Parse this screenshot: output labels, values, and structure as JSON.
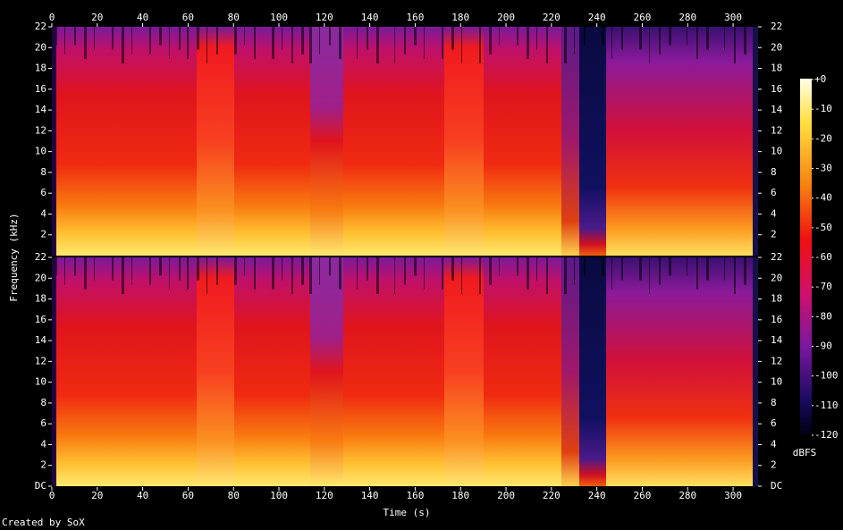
{
  "chart_data": {
    "type": "spectrogram",
    "xlabel": "Time (s)",
    "ylabel": "Frequency (kHz)",
    "xlim": [
      0,
      311
    ],
    "xticks": [
      0,
      20,
      40,
      60,
      80,
      100,
      120,
      140,
      160,
      180,
      200,
      220,
      240,
      260,
      280,
      300
    ],
    "channels": [
      {
        "ylim": [
          0,
          22
        ],
        "yticks": [
          2,
          4,
          6,
          8,
          10,
          12,
          14,
          16,
          18,
          20,
          22
        ]
      },
      {
        "ylim": [
          0,
          22
        ],
        "yticks": [
          {
            "value": 0,
            "label": "DC"
          },
          2,
          4,
          6,
          8,
          10,
          12,
          14,
          16,
          18,
          20,
          22
        ]
      }
    ],
    "colorbar": {
      "label": "dBFS",
      "lim": [
        -120,
        0
      ],
      "ticks": [
        {
          "value": 0,
          "label": "+0"
        },
        -10,
        -20,
        -30,
        -40,
        -50,
        -60,
        -70,
        -80,
        -90,
        -100,
        -110,
        -120
      ]
    },
    "footer": "Created by SoX"
  }
}
